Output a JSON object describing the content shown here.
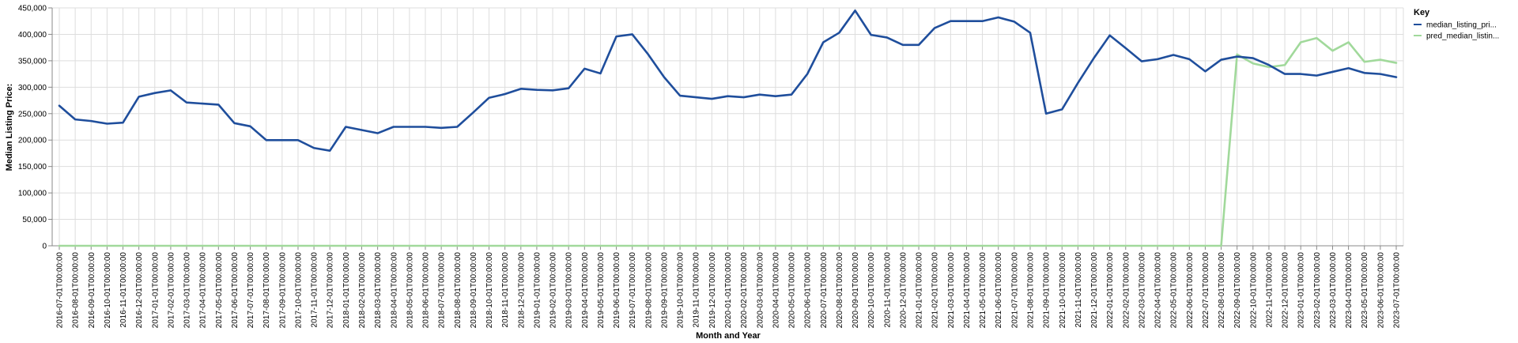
{
  "chart_data": {
    "type": "line",
    "xlabel": "Month and Year",
    "ylabel": "Median Listing Price:",
    "ylim": [
      0,
      450000
    ],
    "yticks": [
      "0",
      "50,000",
      "100,000",
      "150,000",
      "200,000",
      "250,000",
      "300,000",
      "350,000",
      "400,000",
      "450,000"
    ],
    "grid": true,
    "legend_position": "right",
    "legend_title": "Key",
    "x": [
      "2016-07-01T00:00:00",
      "2016-08-01T00:00:00",
      "2016-09-01T00:00:00",
      "2016-10-01T00:00:00",
      "2016-11-01T00:00:00",
      "2016-12-01T00:00:00",
      "2017-01-01T00:00:00",
      "2017-02-01T00:00:00",
      "2017-03-01T00:00:00",
      "2017-04-01T00:00:00",
      "2017-05-01T00:00:00",
      "2017-06-01T00:00:00",
      "2017-07-01T00:00:00",
      "2017-08-01T00:00:00",
      "2017-09-01T00:00:00",
      "2017-10-01T00:00:00",
      "2017-11-01T00:00:00",
      "2017-12-01T00:00:00",
      "2018-01-01T00:00:00",
      "2018-02-01T00:00:00",
      "2018-03-01T00:00:00",
      "2018-04-01T00:00:00",
      "2018-05-01T00:00:00",
      "2018-06-01T00:00:00",
      "2018-07-01T00:00:00",
      "2018-08-01T00:00:00",
      "2018-09-01T00:00:00",
      "2018-10-01T00:00:00",
      "2018-11-01T00:00:00",
      "2018-12-01T00:00:00",
      "2019-01-01T00:00:00",
      "2019-02-01T00:00:00",
      "2019-03-01T00:00:00",
      "2019-04-01T00:00:00",
      "2019-05-01T00:00:00",
      "2019-06-01T00:00:00",
      "2019-07-01T00:00:00",
      "2019-08-01T00:00:00",
      "2019-09-01T00:00:00",
      "2019-10-01T00:00:00",
      "2019-11-01T00:00:00",
      "2019-12-01T00:00:00",
      "2020-01-01T00:00:00",
      "2020-02-01T00:00:00",
      "2020-03-01T00:00:00",
      "2020-04-01T00:00:00",
      "2020-05-01T00:00:00",
      "2020-06-01T00:00:00",
      "2020-07-01T00:00:00",
      "2020-08-01T00:00:00",
      "2020-09-01T00:00:00",
      "2020-10-01T00:00:00",
      "2020-11-01T00:00:00",
      "2020-12-01T00:00:00",
      "2021-01-01T00:00:00",
      "2021-02-01T00:00:00",
      "2021-03-01T00:00:00",
      "2021-04-01T00:00:00",
      "2021-05-01T00:00:00",
      "2021-06-01T00:00:00",
      "2021-07-01T00:00:00",
      "2021-08-01T00:00:00",
      "2021-09-01T00:00:00",
      "2021-10-01T00:00:00",
      "2021-11-01T00:00:00",
      "2021-12-01T00:00:00",
      "2022-01-01T00:00:00",
      "2022-02-01T00:00:00",
      "2022-03-01T00:00:00",
      "2022-04-01T00:00:00",
      "2022-05-01T00:00:00",
      "2022-06-01T00:00:00",
      "2022-07-01T00:00:00",
      "2022-08-01T00:00:00",
      "2022-09-01T00:00:00",
      "2022-10-01T00:00:00",
      "2022-11-01T00:00:00",
      "2022-12-01T00:00:00",
      "2023-01-01T00:00:00",
      "2023-02-01T00:00:00",
      "2023-03-01T00:00:00",
      "2023-04-01T00:00:00",
      "2023-05-01T00:00:00",
      "2023-06-01T00:00:00",
      "2023-07-01T00:00:00"
    ],
    "series": [
      {
        "name": "median_listing_pri...",
        "color": "#1f4e9c",
        "values": [
          265000,
          239000,
          236000,
          231000,
          233000,
          282000,
          289000,
          294000,
          271000,
          269000,
          267000,
          232000,
          226000,
          199900,
          199900,
          199900,
          185000,
          179900,
          225000,
          219000,
          213000,
          225000,
          225000,
          225000,
          223000,
          225000,
          252000,
          280000,
          287000,
          297000,
          295000,
          294000,
          298000,
          335000,
          326000,
          396000,
          400000,
          362000,
          319000,
          284000,
          281000,
          278000,
          283000,
          281000,
          286000,
          283000,
          286000,
          325000,
          385000,
          403000,
          445000,
          399000,
          394000,
          380000,
          380000,
          412000,
          425000,
          425000,
          425000,
          432000,
          424000,
          403000,
          250000,
          258000,
          308000,
          355000,
          398000,
          374000,
          349000,
          353000,
          361000,
          353000,
          330000,
          352000,
          358000,
          355000,
          342000,
          325000,
          325000,
          322000,
          329000,
          336000,
          327000,
          325000,
          319000
        ]
      },
      {
        "name": "pred_median_listin...",
        "color": "#a1d99b",
        "values": [
          0,
          0,
          0,
          0,
          0,
          0,
          0,
          0,
          0,
          0,
          0,
          0,
          0,
          0,
          0,
          0,
          0,
          0,
          0,
          0,
          0,
          0,
          0,
          0,
          0,
          0,
          0,
          0,
          0,
          0,
          0,
          0,
          0,
          0,
          0,
          0,
          0,
          0,
          0,
          0,
          0,
          0,
          0,
          0,
          0,
          0,
          0,
          0,
          0,
          0,
          0,
          0,
          0,
          0,
          0,
          0,
          0,
          0,
          0,
          0,
          0,
          0,
          0,
          0,
          0,
          0,
          0,
          0,
          0,
          0,
          0,
          0,
          0,
          0,
          362000,
          345000,
          338000,
          342000,
          385000,
          393000,
          369000,
          385000,
          348000,
          352000,
          346000
        ]
      }
    ]
  }
}
